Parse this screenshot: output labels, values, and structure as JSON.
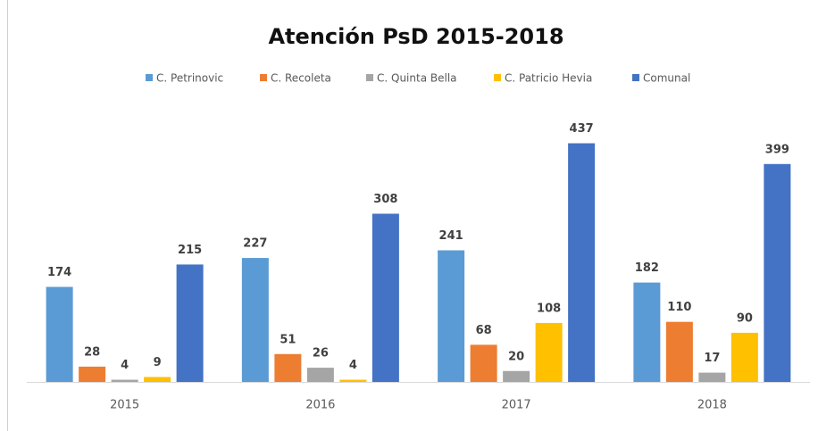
{
  "chart_data": {
    "type": "bar",
    "title": "Atención PsD 2015-2018",
    "categories": [
      "2015",
      "2016",
      "2017",
      "2018"
    ],
    "series": [
      {
        "name": "C. Petrinovic",
        "color": "#5b9bd5",
        "values": [
          174,
          227,
          241,
          182
        ]
      },
      {
        "name": "C. Recoleta",
        "color": "#ed7d31",
        "values": [
          28,
          51,
          68,
          110
        ]
      },
      {
        "name": "C. Quinta Bella",
        "color": "#a5a5a5",
        "values": [
          4,
          26,
          20,
          17
        ]
      },
      {
        "name": "C. Patricio Hevia",
        "color": "#ffc000",
        "values": [
          9,
          4,
          108,
          90
        ]
      },
      {
        "name": "Comunal",
        "color": "#4472c4",
        "values": [
          215,
          308,
          437,
          399
        ]
      }
    ],
    "ylim": [
      0,
      500
    ],
    "legend": "top"
  }
}
